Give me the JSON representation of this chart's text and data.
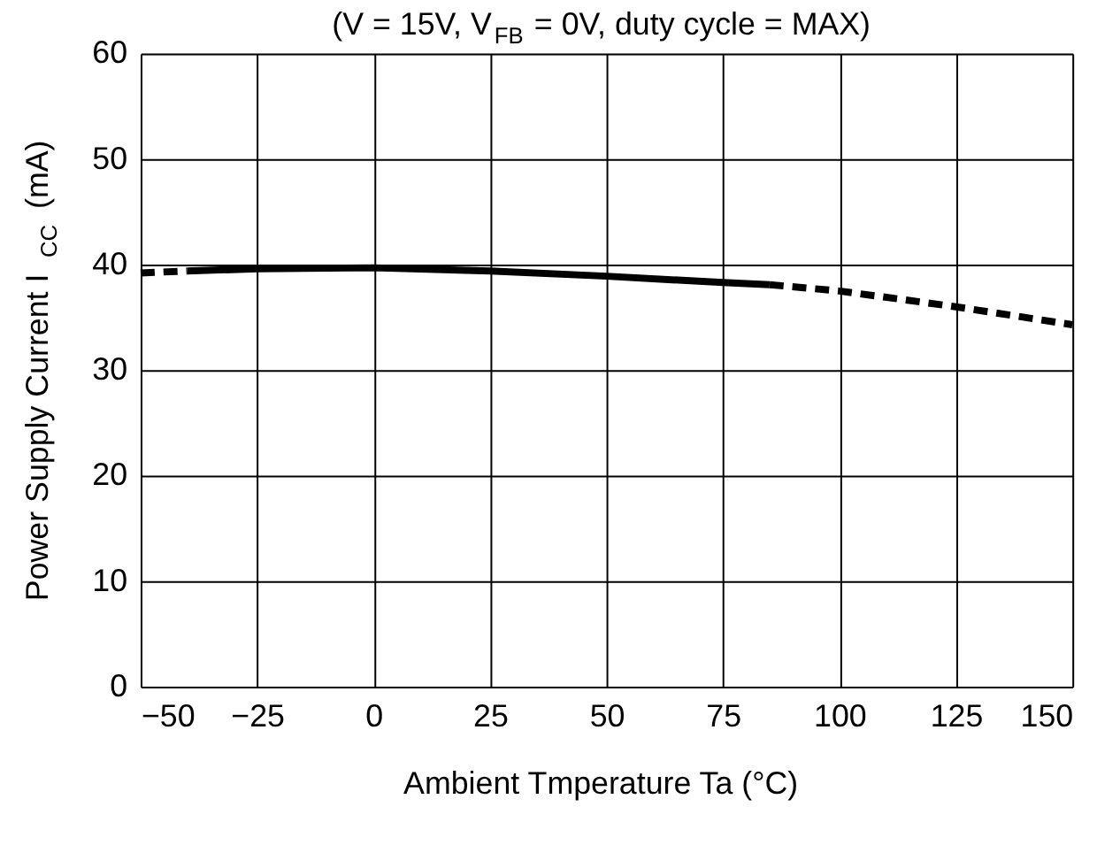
{
  "chart_data": {
    "type": "line",
    "title": "(V = 15V, V$_{FB}$ = 0V, duty cycle = MAX)",
    "xlabel": "Ambient Tmperature Ta (°C)",
    "ylabel": "Power Supply Current  I$_{CC}$  (mA)",
    "series": [
      {
        "color": "#000000",
        "line_style": "dashed",
        "x": [
          -50,
          -40
        ],
        "values": [
          39.2,
          39.4
        ]
      },
      {
        "color": "#000000",
        "line_style": "solid",
        "x": [
          -40,
          -25,
          0,
          25,
          50,
          75,
          85
        ],
        "values": [
          39.4,
          39.6,
          39.7,
          39.4,
          38.9,
          38.3,
          38.1
        ]
      },
      {
        "color": "#000000",
        "line_style": "dashed",
        "x": [
          85,
          100,
          125,
          150
        ],
        "values": [
          38.1,
          37.5,
          36.0,
          34.3
        ]
      }
    ],
    "xlim": [
      -50,
      150
    ],
    "xticks": [
      -50,
      -25,
      0,
      25,
      50,
      75,
      100,
      125,
      150
    ],
    "ylim": [
      0,
      60
    ],
    "yticks": [
      0,
      10,
      20,
      30,
      40,
      50,
      60
    ],
    "grid": true,
    "marker": "none"
  }
}
